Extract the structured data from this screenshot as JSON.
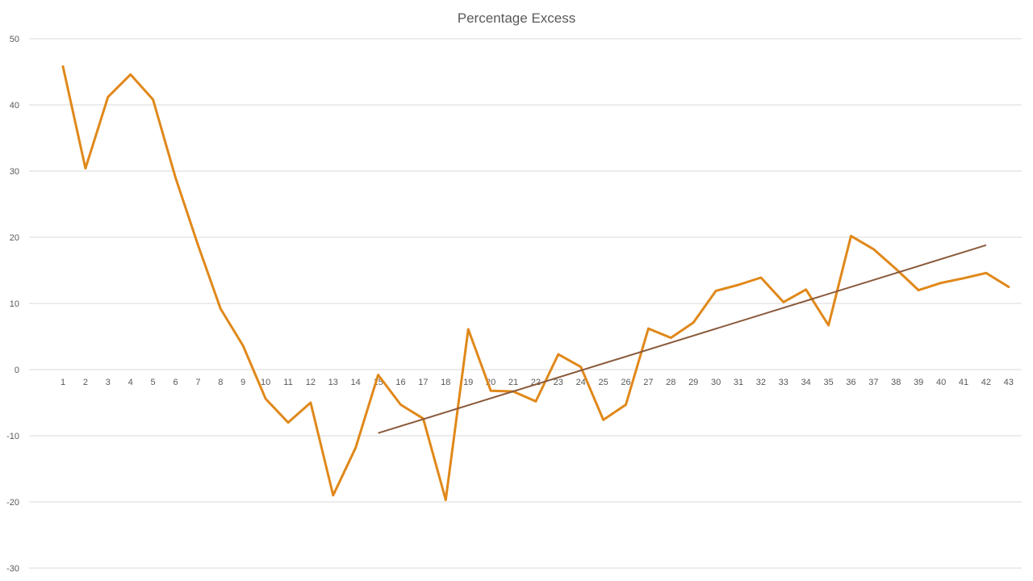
{
  "chart_data": {
    "type": "line",
    "title": "Percentage Excess",
    "xlabel": "",
    "ylabel": "",
    "ylim": [
      -30,
      50
    ],
    "yticks": [
      50,
      40,
      30,
      20,
      10,
      0,
      -10,
      -20,
      -30
    ],
    "grid": true,
    "categories": [
      "1",
      "2",
      "3",
      "4",
      "5",
      "6",
      "7",
      "8",
      "9",
      "10",
      "11",
      "12",
      "13",
      "14",
      "15",
      "16",
      "17",
      "18",
      "19",
      "20",
      "21",
      "22",
      "23",
      "24",
      "25",
      "26",
      "27",
      "28",
      "29",
      "30",
      "31",
      "32",
      "33",
      "34",
      "35",
      "36",
      "37",
      "38",
      "39",
      "40",
      "41",
      "42",
      "43"
    ],
    "series": [
      {
        "values": [
          45.8,
          30.4,
          41.2,
          44.6,
          40.8,
          29.0,
          18.8,
          9.2,
          3.6,
          -4.4,
          -8.0,
          -5.0,
          -19.0,
          -11.8,
          -0.8,
          -5.3,
          -7.4,
          -19.7,
          6.1,
          -3.2,
          -3.3,
          -4.8,
          2.3,
          0.4,
          -7.6,
          -5.3,
          6.2,
          4.8,
          7.1,
          11.9,
          12.8,
          13.9,
          10.2,
          12.1,
          6.7,
          20.2,
          18.2,
          15.2,
          12.0,
          13.1,
          13.8,
          14.6,
          12.5
        ],
        "color": "#e0881a"
      }
    ],
    "trendline": {
      "x_start": 15,
      "x_end": 42,
      "y_start": -9.6,
      "y_end": 18.8,
      "color": "#8b5a3c"
    }
  }
}
